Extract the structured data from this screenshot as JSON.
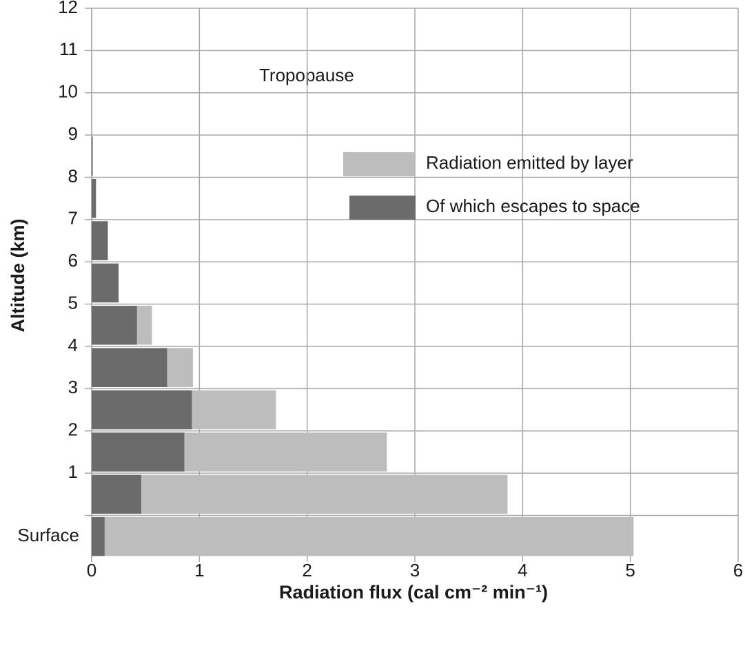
{
  "chart_data": {
    "type": "barh_overlay",
    "annotation": "Tropopause",
    "xlabel": "Radiation flux (cal cm⁻² min⁻¹)",
    "ylabel": "Altitude (km)",
    "y": [
      -0.5,
      0.5,
      1.5,
      2.5,
      3.5,
      4.5,
      5.5,
      6.5,
      7.5,
      8.5
    ],
    "series": [
      {
        "name": "Radiation emitted by layer",
        "color": "#bdbdbd",
        "values": [
          5.03,
          3.86,
          2.74,
          1.71,
          0.94,
          0.56,
          0.25,
          0.15,
          0.04,
          0.01
        ]
      },
      {
        "name": "Of which escapes to space",
        "color": "#6b6b6b",
        "values": [
          0.12,
          0.46,
          0.86,
          0.93,
          0.7,
          0.42,
          0.25,
          0.15,
          0.04,
          0.01
        ]
      }
    ],
    "xlim": [
      0,
      6
    ],
    "xticks": [
      0,
      1,
      2,
      3,
      4,
      5,
      6
    ],
    "ylim": [
      -1.1,
      12
    ],
    "yticks": [
      {
        "value": -0.5,
        "label": "Surface"
      },
      1,
      2,
      3,
      4,
      5,
      6,
      7,
      8,
      9,
      10,
      11,
      12
    ],
    "grid": true
  }
}
